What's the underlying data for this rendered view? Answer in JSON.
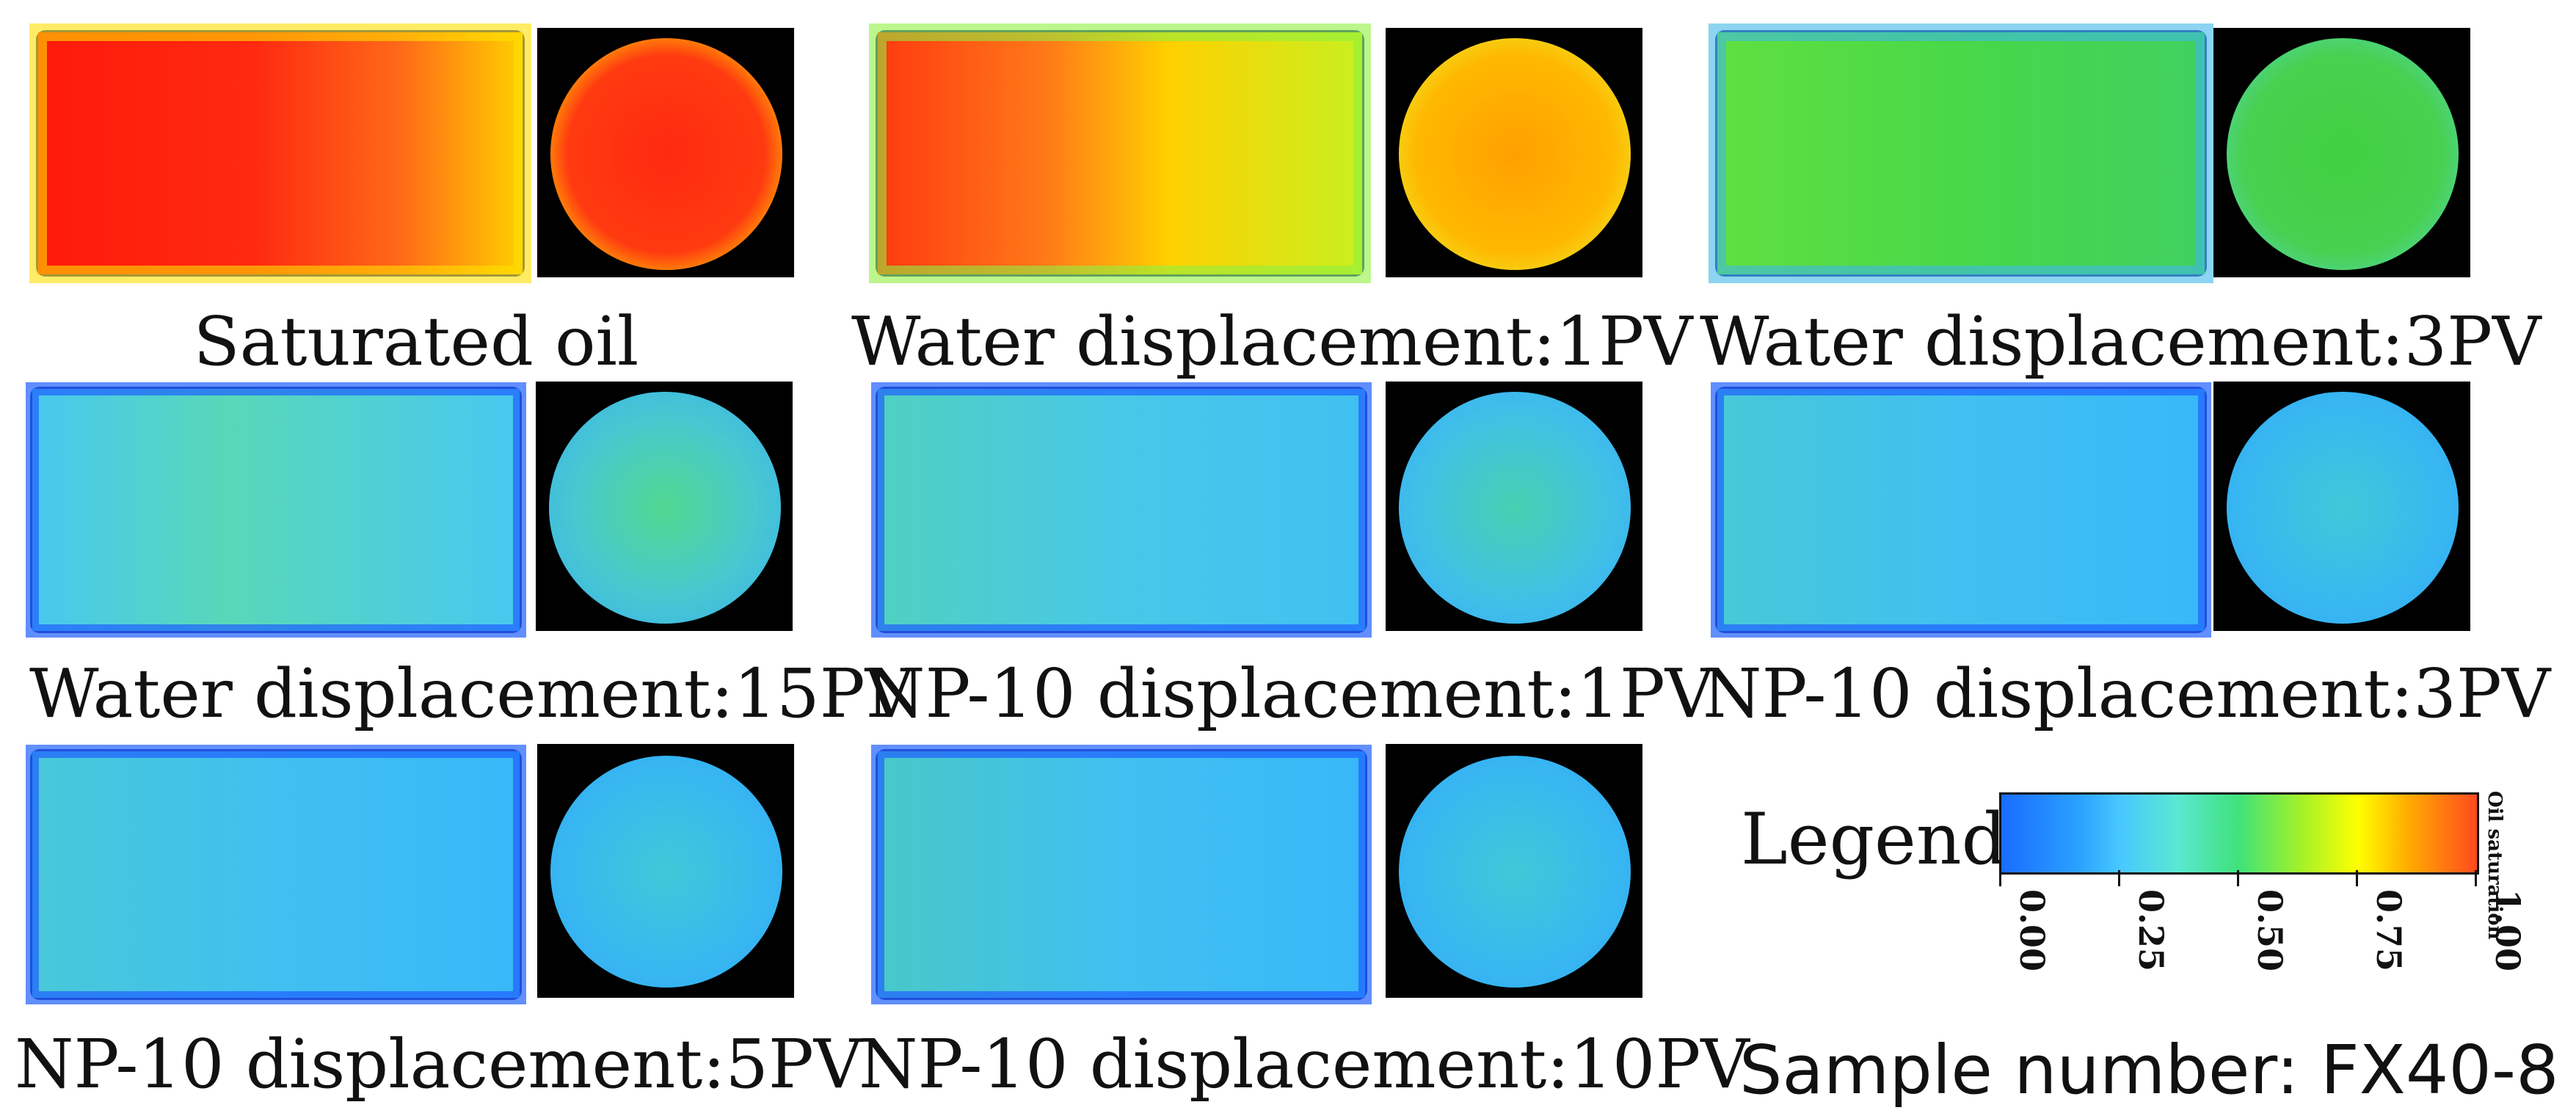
{
  "panels": [
    {
      "label": "Saturated oil",
      "level": 0.92
    },
    {
      "label": "Water displacement:1PV",
      "level": 0.78
    },
    {
      "label": "Water displacement:3PV",
      "level": 0.52
    },
    {
      "label": "Water displacement:15PV",
      "level": 0.36
    },
    {
      "label": "NP-10 displacement:1PV",
      "level": 0.33
    },
    {
      "label": "NP-10 displacement:3PV",
      "level": 0.3
    },
    {
      "label": "NP-10 displacement:5PV",
      "level": 0.3
    },
    {
      "label": "NP-10 displacement:10PV",
      "level": 0.29
    }
  ],
  "legend": {
    "title": "Legend:",
    "quantity": "Oil saturation",
    "ticks": [
      "0.00",
      "0.25",
      "0.50",
      "0.75",
      "1.00"
    ]
  },
  "sample_label": "Sample number: FX40-8"
}
